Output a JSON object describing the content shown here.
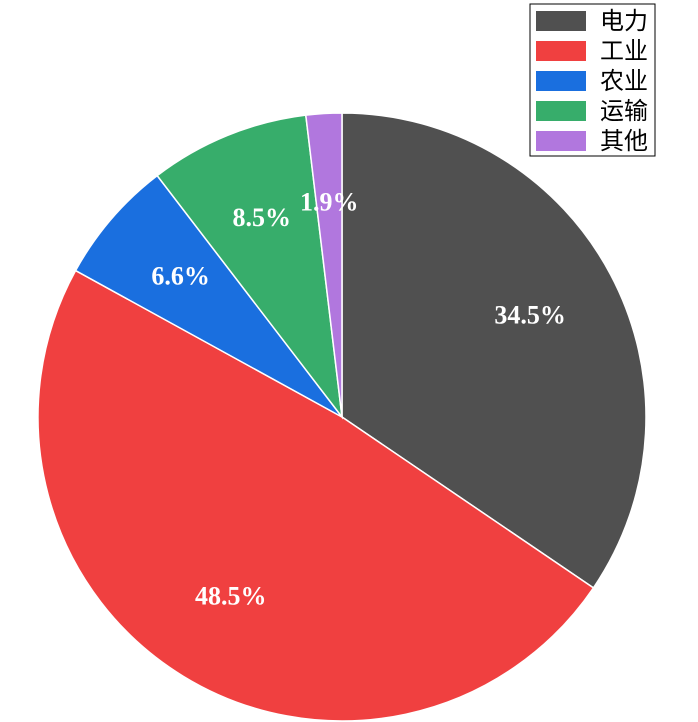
{
  "chart_data": {
    "type": "pie",
    "categories": [
      "电力",
      "工业",
      "农业",
      "运输",
      "其他"
    ],
    "values": [
      34.5,
      48.5,
      6.6,
      8.5,
      1.9
    ],
    "value_labels": [
      "34.5%",
      "48.5%",
      "6.6%",
      "8.5%",
      "1.9%"
    ],
    "colors": [
      "#505050",
      "#f04040",
      "#1a6fdf",
      "#37ad6b",
      "#b177de"
    ],
    "legend": "upper right"
  }
}
